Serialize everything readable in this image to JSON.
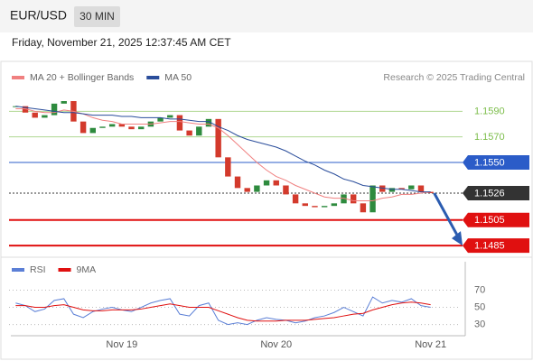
{
  "header": {
    "symbol": "EUR/USD",
    "timeframe": "30 MIN",
    "timestamp": "Friday, November 21, 2025 12:37:45 AM CET"
  },
  "chart_data": [
    {
      "type": "candlestick",
      "source": "Research © 2025 Trading Central",
      "categories": [
        null,
        null,
        null,
        null,
        null,
        null,
        null,
        null,
        null,
        null,
        null,
        "Nov 19",
        null,
        null,
        null,
        null,
        null,
        null,
        null,
        null,
        null,
        null,
        null,
        null,
        null,
        null,
        null,
        "Nov 20",
        null,
        null,
        null,
        null,
        null,
        null,
        null,
        null,
        null,
        null,
        null,
        null,
        null,
        null,
        null,
        "Nov 21"
      ],
      "close": [
        1.1594,
        1.1589,
        1.1585,
        1.1587,
        1.1596,
        1.1598,
        1.1582,
        1.1573,
        1.1577,
        1.1578,
        1.158,
        1.1578,
        1.1576,
        1.1578,
        1.1582,
        1.1585,
        1.1587,
        1.1575,
        1.1571,
        1.1578,
        1.1584,
        1.1554,
        1.1539,
        1.153,
        1.1527,
        1.1532,
        1.1536,
        1.1532,
        1.1525,
        1.1518,
        1.1516,
        1.1515,
        1.1516,
        1.1518,
        1.1525,
        1.1518,
        1.1511,
        1.1532,
        1.1527,
        1.153,
        1.1529,
        1.1532,
        1.1527,
        1.1526
      ],
      "up_color": "#2e8b3e",
      "down_color": "#d33a2c",
      "series": [
        {
          "name": "MA 20 + Bollinger Bands",
          "color": "#f08080",
          "values": [
            1.1592,
            1.1592,
            1.159,
            1.1589,
            1.1589,
            1.1591,
            1.159,
            1.1588,
            1.1585,
            1.1583,
            1.1582,
            1.158,
            1.158,
            1.158,
            1.158,
            1.1581,
            1.1582,
            1.1582,
            1.1581,
            1.158,
            1.158,
            1.1577,
            1.1571,
            1.1564,
            1.1557,
            1.155,
            1.1544,
            1.1539,
            1.1536,
            1.1532,
            1.1529,
            1.1526,
            1.1523,
            1.1522,
            1.1522,
            1.152,
            1.152,
            1.152,
            1.1522,
            1.1523,
            1.1525,
            1.1525,
            1.1526,
            1.1527
          ]
        },
        {
          "name": "MA 50",
          "color": "#2a4d9b",
          "values": [
            1.1594,
            1.1593,
            1.1592,
            1.1591,
            1.159,
            1.1589,
            1.1589,
            1.1588,
            1.1587,
            1.1587,
            1.1587,
            1.1586,
            1.1586,
            1.1585,
            1.1585,
            1.1585,
            1.1584,
            1.1584,
            1.1583,
            1.1582,
            1.1582,
            1.1578,
            1.1575,
            1.1571,
            1.1568,
            1.1566,
            1.1564,
            1.1562,
            1.1559,
            1.1555,
            1.1551,
            1.1548,
            1.1544,
            1.1541,
            1.1537,
            1.1535,
            1.1532,
            1.1531,
            1.153,
            1.1529,
            1.1529,
            1.1528,
            1.1527,
            1.1527
          ]
        }
      ],
      "ylim": [
        1.1478,
        1.161
      ],
      "levels": [
        {
          "value": 1.159,
          "label": "1.1590",
          "color": "#7cbd4a",
          "boxed": false
        },
        {
          "value": 1.157,
          "label": "1.1570",
          "color": "#7cbd4a",
          "boxed": false
        },
        {
          "value": 1.155,
          "label": "1.1550",
          "color": "#2b5cc8",
          "boxed": true
        },
        {
          "value": 1.1526,
          "label": "1.1526",
          "color": "#333333",
          "boxed": true,
          "current": true
        },
        {
          "value": 1.1505,
          "label": "1.1505",
          "color": "#e01010",
          "boxed": true
        },
        {
          "value": 1.1485,
          "label": "1.1485",
          "color": "#e01010",
          "boxed": true,
          "target": true
        }
      ]
    },
    {
      "type": "line",
      "series": [
        {
          "name": "RSI",
          "color": "#5b7fd6",
          "values": [
            55,
            52,
            45,
            48,
            58,
            60,
            42,
            38,
            45,
            48,
            50,
            47,
            45,
            50,
            55,
            58,
            60,
            42,
            40,
            52,
            55,
            35,
            30,
            32,
            30,
            35,
            38,
            36,
            35,
            32,
            34,
            38,
            40,
            44,
            50,
            45,
            40,
            62,
            55,
            58,
            56,
            60,
            52,
            50
          ]
        },
        {
          "name": "9MA",
          "color": "#e01010",
          "values": [
            52,
            52,
            50,
            50,
            52,
            53,
            50,
            47,
            46,
            46,
            47,
            47,
            47,
            48,
            50,
            52,
            54,
            52,
            50,
            50,
            50,
            46,
            42,
            38,
            35,
            34,
            34,
            34,
            35,
            35,
            35,
            36,
            37,
            38,
            40,
            42,
            43,
            47,
            50,
            53,
            55,
            56,
            55,
            53
          ]
        }
      ],
      "ylim": [
        17,
        82
      ],
      "yticks": [
        30,
        50,
        70
      ]
    }
  ]
}
